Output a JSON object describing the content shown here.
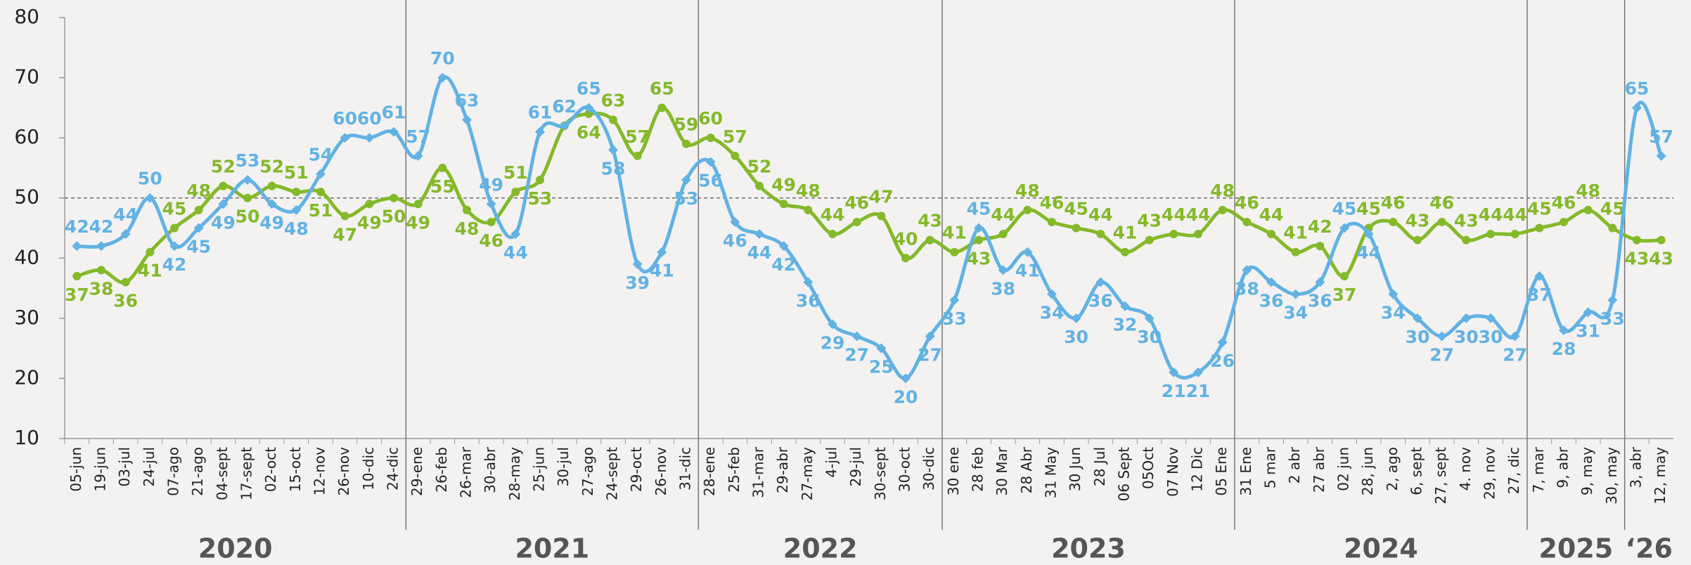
{
  "chart_data": {
    "type": "line",
    "categories": [
      "05-jun",
      "19-jun",
      "03-jul",
      "24-jul",
      "07-ago",
      "21-ago",
      "04-sept",
      "17-sept",
      "02-oct",
      "15-oct",
      "12-nov",
      "26-nov",
      "10-dic",
      "24-dic",
      "29-ene",
      "26-feb",
      "26-mar",
      "30-abr",
      "28-may",
      "25-jun",
      "30-jul",
      "27-ago",
      "24-sept",
      "29-oct",
      "26-nov",
      "31-dic",
      "28-ene",
      "25-feb",
      "31-mar",
      "29-abr",
      "27-may",
      "4-jul",
      "29-jul",
      "30-sept",
      "30-oct",
      "30-dic",
      "30 ene",
      "28 feb",
      "30 Mar",
      "28 Abr",
      "31 May",
      "30 Jun",
      "28 Jul",
      "06 Sept",
      "05Oct",
      "07 Nov",
      "12 Dic",
      "05 Ene",
      "31 Ene",
      "5 mar",
      "2 abr",
      "27 abr",
      "02 jun",
      "28, jun",
      "2, ago",
      "6, sept",
      "27, sept",
      "4. nov",
      "29, nov",
      "27, dic",
      "7, mar",
      "9, abr",
      "9, may",
      "30, may",
      "3, abr",
      "12, may"
    ],
    "groups": [
      {
        "name": "2020",
        "size": 14
      },
      {
        "name": "2021",
        "size": 12
      },
      {
        "name": "2022",
        "size": 10
      },
      {
        "name": "2023",
        "size": 12
      },
      {
        "name": "2024",
        "size": 12
      },
      {
        "name": "2025",
        "size": 4
      },
      {
        "name": "‘26",
        "size": 2
      }
    ],
    "series": [
      {
        "color": "#62b2e3",
        "marker": "diamond",
        "values": [
          42,
          42,
          44,
          50,
          42,
          45,
          49,
          53,
          49,
          48,
          54,
          60,
          60,
          61,
          57,
          70,
          63,
          49,
          44,
          61,
          62,
          65,
          58,
          39,
          41,
          53,
          56,
          46,
          44,
          42,
          36,
          29,
          27,
          25,
          20,
          27,
          33,
          45,
          38,
          41,
          34,
          30,
          36,
          32,
          30,
          21,
          21,
          26,
          38,
          36,
          34,
          36,
          45,
          44,
          34,
          30,
          27,
          30,
          30,
          27,
          37,
          28,
          31,
          33,
          65,
          57
        ]
      },
      {
        "color": "#84b92a",
        "marker": "circle",
        "values": [
          37,
          38,
          36,
          41,
          45,
          48,
          52,
          50,
          52,
          51,
          51,
          47,
          49,
          50,
          49,
          55,
          48,
          46,
          51,
          53,
          62,
          64,
          63,
          57,
          65,
          59,
          60,
          57,
          52,
          49,
          48,
          44,
          46,
          47,
          40,
          43,
          41,
          43,
          44,
          48,
          46,
          45,
          44,
          41,
          43,
          44,
          44,
          48,
          46,
          44,
          41,
          42,
          37,
          45,
          46,
          43,
          46,
          43,
          44,
          44,
          45,
          46,
          48,
          45,
          43,
          43
        ]
      }
    ],
    "ylim": [
      10,
      80
    ],
    "yticks": [
      10,
      20,
      30,
      40,
      50,
      60,
      70,
      80
    ],
    "reference_line": 50
  }
}
